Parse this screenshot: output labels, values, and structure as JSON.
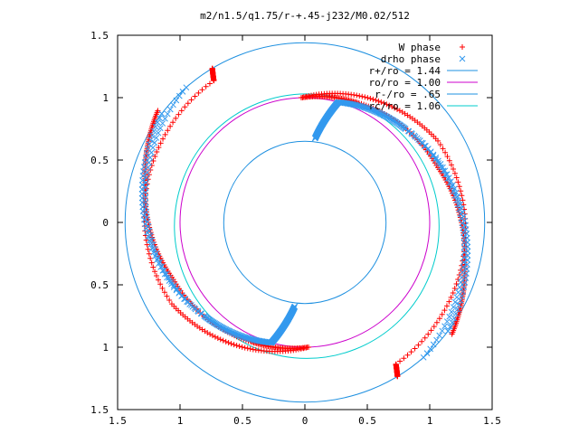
{
  "chart_data": {
    "type": "scatter",
    "title": "m2/n1.5/q1.75/r-+.45-j232/M0.02/512",
    "xlim": [
      -1.5,
      1.5
    ],
    "ylim": [
      -1.5,
      1.5
    ],
    "x_ticks": [
      -1.5,
      -1,
      -0.5,
      0,
      0.5,
      1,
      1.5
    ],
    "y_ticks": [
      -1.5,
      -1,
      -0.5,
      0,
      0.5,
      1,
      1.5
    ],
    "x_tick_labels": [
      "1.5",
      "1",
      "0.5",
      "0",
      "0.5",
      "1",
      "1.5"
    ],
    "y_tick_labels": [
      "1.5",
      "1",
      "0.5",
      "0",
      "0.5",
      "1",
      "1.5"
    ],
    "grid": false,
    "legend_position": "top-right",
    "series": [
      {
        "name": "W phase",
        "kind": "points",
        "marker": "plus",
        "color": "#ff0000",
        "arcs": [
          {
            "theta": [
              0.25,
              -0.8,
              -2.35,
              -2.38
            ],
            "r": [
              1.0,
              1.25,
              1.35,
              1.44
            ]
          },
          {
            "theta": [
              0.25,
              -0.2,
              -0.95,
              -1.6,
              -2.0
            ],
            "r": [
              1.0,
              1.05,
              1.15,
              1.32,
              1.48
            ]
          }
        ]
      },
      {
        "name": "drho phase",
        "kind": "points",
        "marker": "cross",
        "color": "#3399ee",
        "arcs": [
          {
            "theta": [
              0.1,
              -0.05,
              -0.6,
              -2.0
            ],
            "r": [
              0.68,
              1.0,
              1.1,
              1.44
            ]
          },
          {
            "theta": [
              0.1,
              -0.05,
              -0.6,
              -2.2
            ],
            "r": [
              0.68,
              1.0,
              1.1,
              1.44
            ]
          }
        ]
      },
      {
        "name": "r+/ro = 1.44",
        "kind": "circle",
        "r": 1.44,
        "color": "#1e90e0"
      },
      {
        "name": "ro/ro = 1.00",
        "kind": "circle",
        "r": 1.0,
        "color": "#cc00cc"
      },
      {
        "name": "r-/ro = .65",
        "kind": "circle",
        "r": 0.65,
        "color": "#1e90e0"
      },
      {
        "name": "rc/ro = 1.06",
        "kind": "circle",
        "r": 1.06,
        "color": "#00cccc",
        "cx": 0.015,
        "cy": -0.03
      }
    ]
  }
}
